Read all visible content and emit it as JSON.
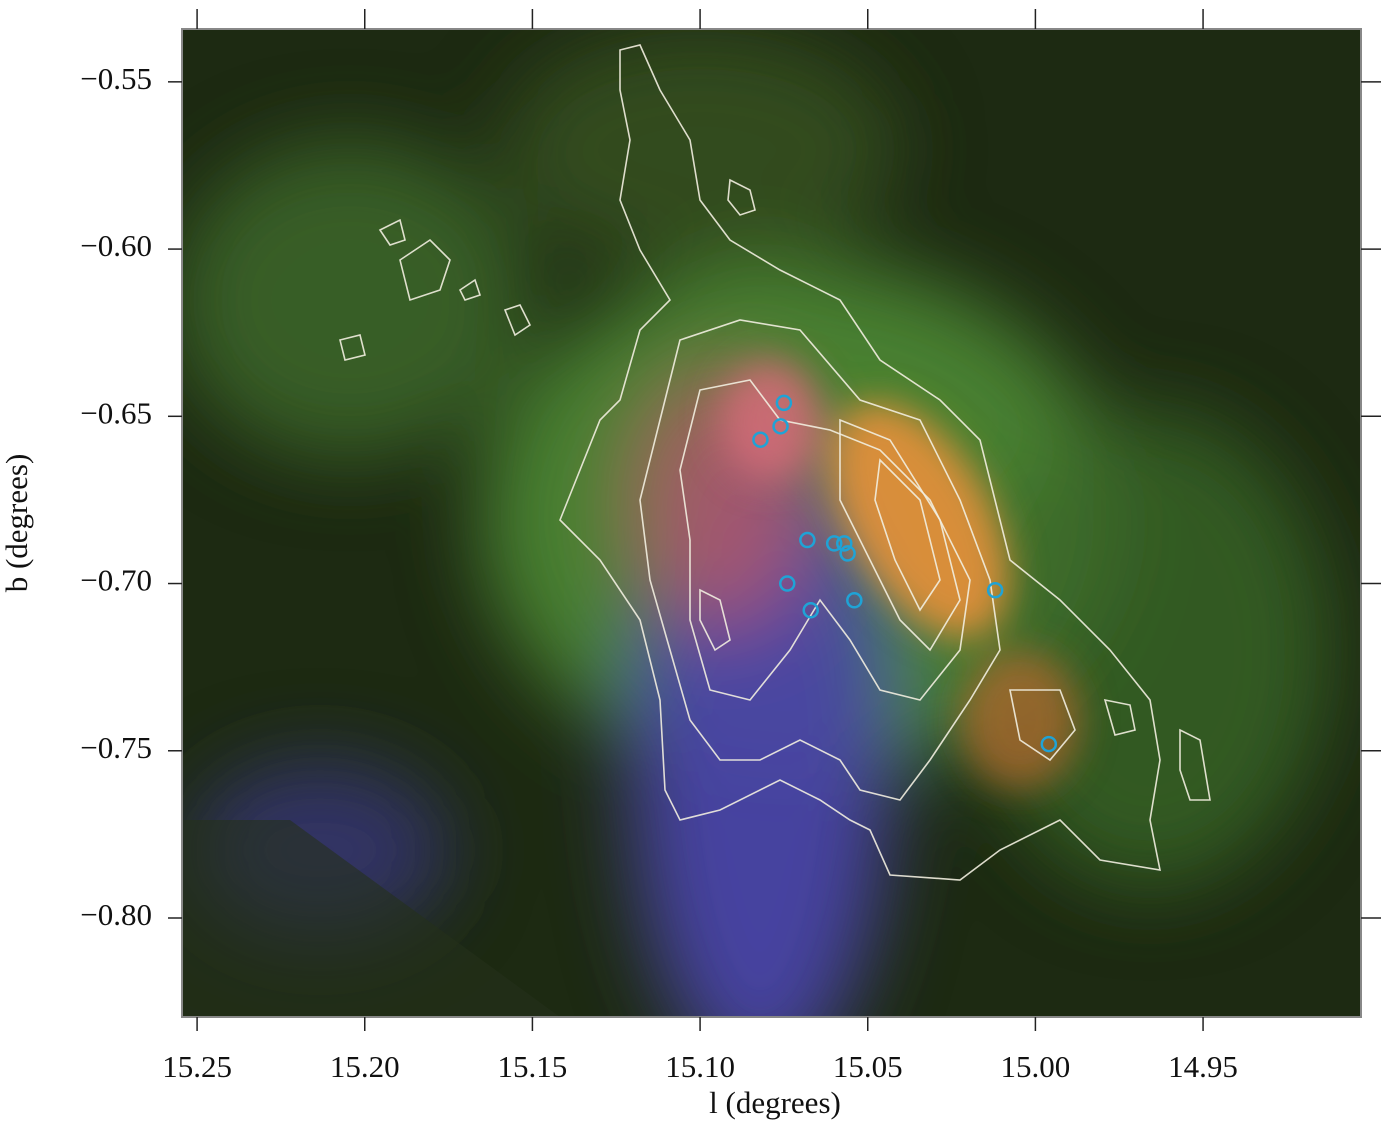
{
  "chart_data": {
    "type": "scatter",
    "x_label": "l (degrees)",
    "y_label": "b (degrees)",
    "x": [
      15.075,
      15.076,
      15.082,
      15.068,
      15.06,
      15.057,
      15.056,
      15.074,
      15.067,
      15.054,
      15.012,
      14.996
    ],
    "values": [
      -0.646,
      -0.653,
      -0.657,
      -0.687,
      -0.688,
      -0.688,
      -0.691,
      -0.7,
      -0.708,
      -0.705,
      -0.702,
      -0.748
    ],
    "color": "#1fa3d6",
    "xlim": [
      15.2545,
      14.9029
    ],
    "ylim": [
      -0.8296,
      -0.5342
    ],
    "xticks": [
      15.25,
      {
        "value": 15.2,
        "label": "15.20"
      },
      15.15,
      {
        "value": 15.1,
        "label": "15.10"
      },
      15.05,
      {
        "value": 15.0,
        "label": "15.00"
      },
      14.95
    ],
    "yticks": [
      {
        "value": -0.55,
        "label": "−0.55"
      },
      {
        "value": -0.6,
        "label": "−0.60"
      },
      {
        "value": -0.65,
        "label": "−0.65"
      },
      {
        "value": -0.7,
        "label": "−0.70"
      },
      {
        "value": -0.75,
        "label": "−0.75"
      },
      {
        "value": -0.8,
        "label": "−0.80"
      }
    ]
  }
}
